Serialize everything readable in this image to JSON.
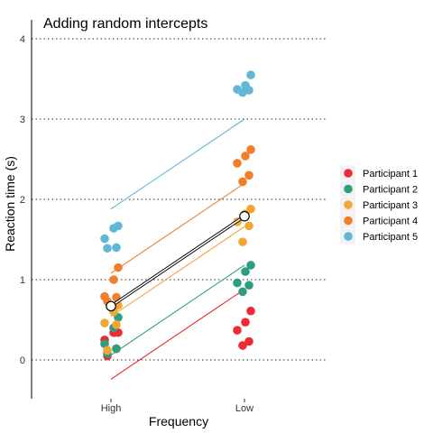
{
  "chart_data": {
    "type": "scatter",
    "title": "Adding random intercepts",
    "xlabel": "Frequency",
    "ylabel": "Reaction time (s)",
    "categories": [
      "High",
      "Low"
    ],
    "ylim": [
      -0.45,
      4.35
    ],
    "yticks": [
      0,
      1,
      2,
      3,
      4
    ],
    "grid": "horizontal dotted",
    "legend_position": "right",
    "series": [
      {
        "name": "Participant 1",
        "color": "#EE2A35",
        "points": [
          {
            "x": "High",
            "y": 0.05
          },
          {
            "x": "High",
            "y": 0.14
          },
          {
            "x": "High",
            "y": 0.25
          },
          {
            "x": "High",
            "y": 0.34
          },
          {
            "x": "High",
            "y": 0.34
          },
          {
            "x": "Low",
            "y": 0.18
          },
          {
            "x": "Low",
            "y": 0.23
          },
          {
            "x": "Low",
            "y": 0.37
          },
          {
            "x": "Low",
            "y": 0.47
          },
          {
            "x": "Low",
            "y": 0.61
          }
        ],
        "fit": [
          -0.24,
          0.88
        ]
      },
      {
        "name": "Participant 2",
        "color": "#2E9E82",
        "points": [
          {
            "x": "High",
            "y": 0.08
          },
          {
            "x": "High",
            "y": 0.14
          },
          {
            "x": "High",
            "y": 0.2
          },
          {
            "x": "High",
            "y": 0.4
          },
          {
            "x": "High",
            "y": 0.53
          },
          {
            "x": "Low",
            "y": 0.85
          },
          {
            "x": "Low",
            "y": 0.93
          },
          {
            "x": "Low",
            "y": 0.96
          },
          {
            "x": "Low",
            "y": 1.1
          },
          {
            "x": "Low",
            "y": 1.18
          }
        ],
        "fit": [
          0.06,
          1.18
        ]
      },
      {
        "name": "Participant 3",
        "color": "#F3A632",
        "points": [
          {
            "x": "High",
            "y": 0.12
          },
          {
            "x": "High",
            "y": 0.44
          },
          {
            "x": "High",
            "y": 0.46
          },
          {
            "x": "High",
            "y": 0.6
          },
          {
            "x": "High",
            "y": 0.68
          },
          {
            "x": "Low",
            "y": 1.47
          },
          {
            "x": "Low",
            "y": 1.67
          },
          {
            "x": "Low",
            "y": 1.72
          },
          {
            "x": "Low",
            "y": 1.82
          },
          {
            "x": "Low",
            "y": 1.88
          }
        ],
        "fit": [
          0.54,
          1.66
        ]
      },
      {
        "name": "Participant 4",
        "color": "#F07F2A",
        "points": [
          {
            "x": "High",
            "y": 0.73
          },
          {
            "x": "High",
            "y": 0.78
          },
          {
            "x": "High",
            "y": 0.79
          },
          {
            "x": "High",
            "y": 1.0
          },
          {
            "x": "High",
            "y": 1.15
          },
          {
            "x": "Low",
            "y": 2.22
          },
          {
            "x": "Low",
            "y": 2.3
          },
          {
            "x": "Low",
            "y": 2.45
          },
          {
            "x": "Low",
            "y": 2.54
          },
          {
            "x": "Low",
            "y": 2.62
          }
        ],
        "fit": [
          1.08,
          2.2
        ]
      },
      {
        "name": "Participant 5",
        "color": "#62B8D4",
        "points": [
          {
            "x": "High",
            "y": 1.39
          },
          {
            "x": "High",
            "y": 1.4
          },
          {
            "x": "High",
            "y": 1.51
          },
          {
            "x": "High",
            "y": 1.64
          },
          {
            "x": "High",
            "y": 1.67
          },
          {
            "x": "Low",
            "y": 3.33
          },
          {
            "x": "Low",
            "y": 3.36
          },
          {
            "x": "Low",
            "y": 3.37
          },
          {
            "x": "Low",
            "y": 3.42
          },
          {
            "x": "Low",
            "y": 3.55
          }
        ],
        "fit": [
          1.88,
          3.0
        ]
      }
    ],
    "overall": {
      "color": "#000000",
      "fill": "#ffffff",
      "points": [
        {
          "x": "High",
          "y": 0.67
        },
        {
          "x": "Low",
          "y": 1.79
        }
      ]
    }
  }
}
